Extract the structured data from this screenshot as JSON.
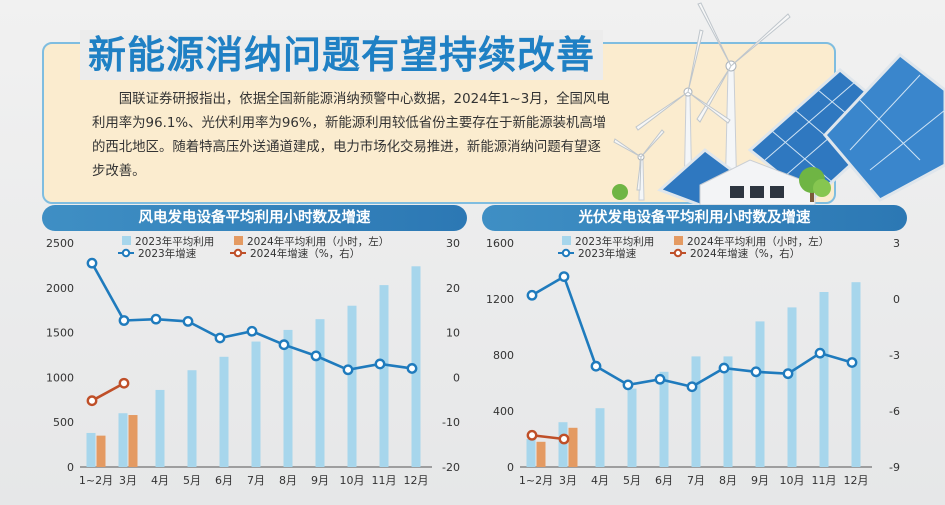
{
  "headline": "新能源消纳问题有望持续改善",
  "intro": "国联证券研报指出，依据全国新能源消纳预警中心数据，2024年1~3月，全国风电利用率为96.1%、光伏利用率为96%，新能源利用较低省份主要存在于新能源装机高增的西北地区。随着特高压外送通道建成，电力市场化交易推进，新能源消纳问题有望逐步改善。",
  "colors": {
    "bar_2023": "#a7d6ec",
    "bar_2024": "#e49a62",
    "line_2023": "#1f7bbd",
    "line_2024": "#bf4f28",
    "title_bg": "#2f80bd",
    "headline": "#1f80c4"
  },
  "chart_data": [
    {
      "type": "bar",
      "title": "风电发电设备平均利用小时数及增速",
      "categories": [
        "1~2月",
        "3月",
        "4月",
        "5月",
        "6月",
        "7月",
        "8月",
        "9月",
        "10月",
        "11月",
        "12月"
      ],
      "y_left": {
        "min": 0,
        "max": 2500,
        "ticks": [
          "0",
          "500",
          "1000",
          "1500",
          "2000",
          "2500"
        ],
        "tick_values": [
          0,
          500,
          1000,
          1500,
          2000,
          2500
        ]
      },
      "y_right": {
        "min": -20,
        "max": 30,
        "ticks": [
          "-20",
          "-10",
          "0",
          "10",
          "20",
          "30"
        ],
        "tick_values": [
          -20,
          -10,
          0,
          10,
          20,
          30
        ]
      },
      "legend": [
        "2023年平均利用",
        "2024年平均利用（小时，左）",
        "2023年增速",
        "2024年增速（%，右）"
      ],
      "series": [
        {
          "name": "2023年平均利用",
          "kind": "bar",
          "axis": "left",
          "values": [
            380,
            600,
            860,
            1080,
            1230,
            1400,
            1530,
            1650,
            1800,
            2030,
            2240
          ]
        },
        {
          "name": "2024年平均利用",
          "kind": "bar",
          "axis": "left",
          "values": [
            350,
            580,
            null,
            null,
            null,
            null,
            null,
            null,
            null,
            null,
            null
          ]
        },
        {
          "name": "2023年增速",
          "kind": "line",
          "axis": "right",
          "values": [
            25.5,
            12.7,
            13,
            12.5,
            8.8,
            10.3,
            7.3,
            4.8,
            1.7,
            3,
            2
          ]
        },
        {
          "name": "2024年增速",
          "kind": "line",
          "axis": "right",
          "values": [
            -5.2,
            -1.3,
            null,
            null,
            null,
            null,
            null,
            null,
            null,
            null,
            null
          ]
        }
      ]
    },
    {
      "type": "bar",
      "title": "光伏发电设备平均利用小时数及增速",
      "categories": [
        "1~2月",
        "3月",
        "4月",
        "5月",
        "6月",
        "7月",
        "8月",
        "9月",
        "10月",
        "11月",
        "12月"
      ],
      "y_left": {
        "min": 0,
        "max": 1600,
        "ticks": [
          "0",
          "400",
          "800",
          "1200",
          "1600"
        ],
        "tick_values": [
          0,
          400,
          800,
          1200,
          1600
        ]
      },
      "y_right": {
        "min": -9,
        "max": 3,
        "ticks": [
          "-9",
          "-6",
          "-3",
          "0",
          "3"
        ],
        "tick_values": [
          -9,
          -6,
          -3,
          0,
          3
        ]
      },
      "legend": [
        "2023年平均利用",
        "2024年平均利用（小时，左）",
        "2023年增速",
        "2024年增速（%，右）"
      ],
      "series": [
        {
          "name": "2023年平均利用",
          "kind": "bar",
          "axis": "left",
          "values": [
            200,
            320,
            420,
            560,
            680,
            790,
            790,
            1040,
            1140,
            1250,
            1320
          ]
        },
        {
          "name": "2024年平均利用",
          "kind": "bar",
          "axis": "left",
          "values": [
            180,
            280,
            null,
            null,
            null,
            null,
            null,
            null,
            null,
            null,
            null
          ]
        },
        {
          "name": "2023年增速",
          "kind": "line",
          "axis": "right",
          "values": [
            0.2,
            1.2,
            -3.6,
            -4.6,
            -4.3,
            -4.7,
            -3.7,
            -3.9,
            -4,
            -2.9,
            -3.4
          ]
        },
        {
          "name": "2024年增速",
          "kind": "line",
          "axis": "right",
          "values": [
            -7.3,
            -7.5,
            null,
            null,
            null,
            null,
            null,
            null,
            null,
            null,
            null
          ]
        }
      ]
    }
  ]
}
